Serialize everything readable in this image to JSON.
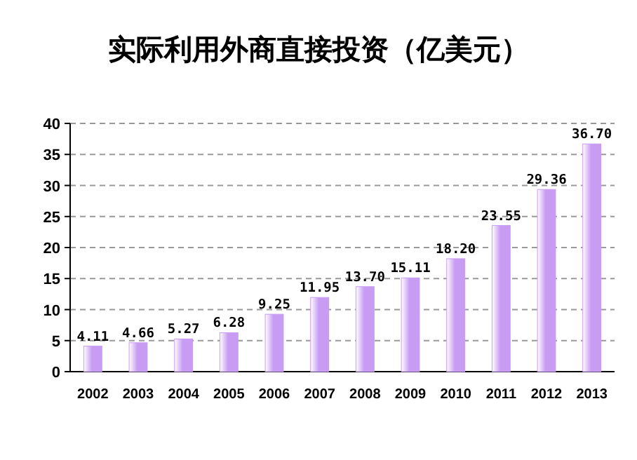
{
  "chart_data": {
    "type": "bar",
    "title": "实际利用外商直接投资（亿美元）",
    "categories": [
      "2002",
      "2003",
      "2004",
      "2005",
      "2006",
      "2007",
      "2008",
      "2009",
      "2010",
      "2011",
      "2012",
      "2013"
    ],
    "values": [
      4.11,
      4.66,
      5.27,
      6.28,
      9.25,
      11.95,
      13.7,
      15.11,
      18.2,
      23.55,
      29.36,
      36.7
    ],
    "value_labels": [
      "4.11",
      "4.66",
      "5.27",
      "6.28",
      "9.25",
      "11.95",
      "13.70",
      "15.11",
      "18.20",
      "23.55",
      "29.36",
      "36.70"
    ],
    "color": "#c79cf2",
    "ylim": [
      0,
      40
    ],
    "yticks": [
      0,
      5,
      10,
      15,
      20,
      25,
      30,
      35,
      40
    ],
    "grid": "y"
  }
}
